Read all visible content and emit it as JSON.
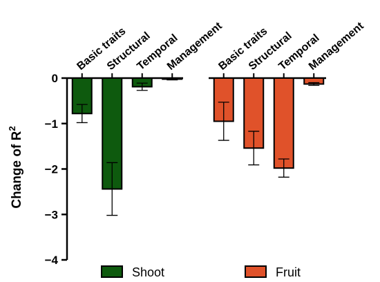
{
  "chart_data": {
    "type": "bar",
    "ylabel": "Change of R",
    "ylabel_superscript": "2",
    "ylim": [
      -4,
      0
    ],
    "yticks": [
      0,
      -1,
      -2,
      -3,
      -4
    ],
    "ytick_labels": [
      "0",
      "−1",
      "−2",
      "−3",
      "−4"
    ],
    "groups": [
      {
        "name": "Shoot",
        "color": "#0e5a0e",
        "categories": [
          "Basic traits",
          "Structural",
          "Temporal",
          "Management"
        ],
        "values": [
          -0.78,
          -2.44,
          -0.19,
          -0.02
        ],
        "error": [
          0.2,
          0.58,
          0.08,
          0.02
        ]
      },
      {
        "name": "Fruit",
        "color": "#e0522a",
        "categories": [
          "Basic traits",
          "Structural",
          "Temporal",
          "Management"
        ],
        "values": [
          -0.95,
          -1.54,
          -1.98,
          -0.13
        ],
        "error": [
          0.42,
          0.37,
          0.2,
          0.03
        ]
      }
    ],
    "legend": {
      "placement": "bottom",
      "entries": [
        {
          "label": "Shoot",
          "color": "#0e5a0e"
        },
        {
          "label": "Fruit",
          "color": "#e0522a"
        }
      ]
    }
  }
}
